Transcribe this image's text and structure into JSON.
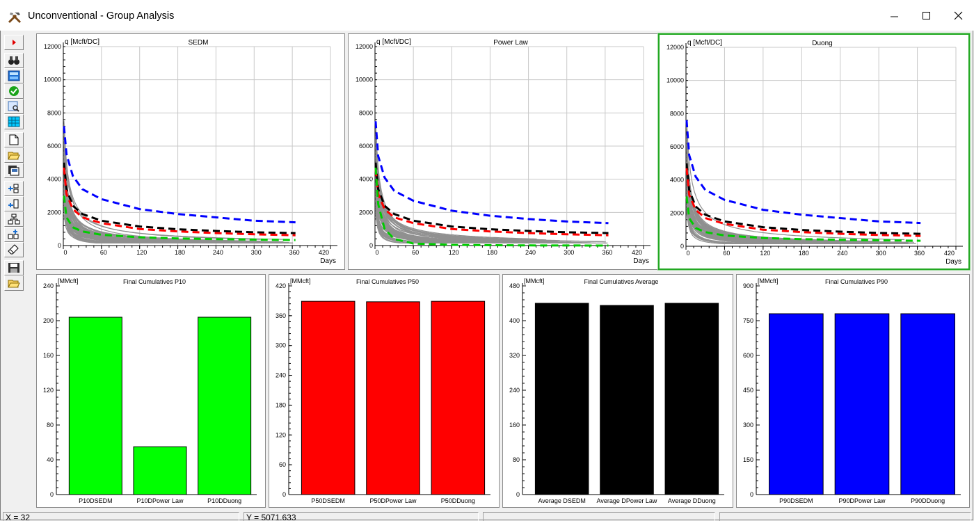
{
  "window": {
    "title": "Unconventional - Group Analysis"
  },
  "toolbar": {
    "buttons": [
      "run-icon",
      "binoculars-icon",
      "calculator-icon",
      "check-icon",
      "preview-icon",
      "grid-icon",
      "new-file-icon",
      "open-folder-icon",
      "save-copy-icon",
      "add-node-icon",
      "insert-node-icon",
      "tree-icon",
      "add-tree-icon",
      "eraser-icon",
      "save-disk-icon",
      "open-folder-icon"
    ]
  },
  "line_panels": [
    {
      "title": "SEDM",
      "y_label": "q [Mcft/DC]",
      "x_label": "Days",
      "y_ticks": [
        "0",
        "2000",
        "4000",
        "6000",
        "8000",
        "10000",
        "12000"
      ],
      "x_ticks": [
        "0",
        "60",
        "120",
        "180",
        "240",
        "300",
        "360",
        "420"
      ],
      "selected": false
    },
    {
      "title": "Power Law",
      "y_label": "q [Mcft/DC]",
      "x_label": "Days",
      "y_ticks": [
        "0",
        "2000",
        "4000",
        "6000",
        "8000",
        "10000",
        "12000"
      ],
      "x_ticks": [
        "0",
        "60",
        "120",
        "180",
        "240",
        "300",
        "360",
        "420"
      ],
      "selected": false
    },
    {
      "title": "Duong",
      "y_label": "q [Mcft/DC]",
      "x_label": "Days",
      "y_ticks": [
        "0",
        "2000",
        "4000",
        "6000",
        "8000",
        "10000",
        "12000"
      ],
      "x_ticks": [
        "0",
        "60",
        "120",
        "180",
        "240",
        "300",
        "360",
        "420"
      ],
      "selected": true
    }
  ],
  "bar_panels": [
    {
      "title": "Final Cumulatives P10",
      "y_label": "[MMcft]",
      "color": "#00ff00",
      "y_ticks": [
        "0",
        "40",
        "80",
        "120",
        "160",
        "200",
        "240"
      ],
      "categories": [
        "P10DSEDM",
        "P10DPower Law",
        "P10DDuong"
      ]
    },
    {
      "title": "Final Cumulatives P50",
      "y_label": "[MMcft]",
      "color": "#ff0000",
      "y_ticks": [
        "0",
        "60",
        "120",
        "180",
        "240",
        "300",
        "360",
        "420"
      ],
      "categories": [
        "P50DSEDM",
        "P50DPower Law",
        "P50DDuong"
      ]
    },
    {
      "title": "Final Cumulatives Average",
      "y_label": "[MMcft]",
      "color": "#000000",
      "y_ticks": [
        "0",
        "80",
        "160",
        "240",
        "320",
        "400",
        "480"
      ],
      "categories": [
        "Average DSEDM",
        "Average DPower Law",
        "Average DDuong"
      ]
    },
    {
      "title": "Final Cumulatives P90",
      "y_label": "[MMcft]",
      "color": "#0000ff",
      "y_ticks": [
        "0",
        "150",
        "300",
        "450",
        "600",
        "750",
        "900"
      ],
      "categories": [
        "P90DSEDM",
        "P90DPower Law",
        "P90DDuong"
      ]
    }
  ],
  "chart_data": [
    {
      "type": "line",
      "title": "SEDM",
      "ylabel": "q [Mcft/DC]",
      "xlabel": "Days",
      "xlim": [
        0,
        420
      ],
      "ylim": [
        0,
        12000
      ],
      "grid": true,
      "series": [
        {
          "color": "#0000ff",
          "style": "dashed",
          "x": [
            1,
            5,
            15,
            30,
            60,
            120,
            180,
            240,
            300,
            365
          ],
          "y": [
            7200,
            5500,
            4200,
            3400,
            2800,
            2200,
            1900,
            1700,
            1500,
            1400
          ]
        },
        {
          "color": "#000000",
          "style": "dashed",
          "x": [
            1,
            5,
            15,
            30,
            60,
            120,
            180,
            240,
            300,
            365
          ],
          "y": [
            5000,
            3400,
            2400,
            1900,
            1500,
            1150,
            980,
            880,
            800,
            750
          ]
        },
        {
          "color": "#ff0000",
          "style": "dashed",
          "x": [
            1,
            5,
            15,
            30,
            60,
            120,
            180,
            240,
            300,
            365
          ],
          "y": [
            4700,
            3100,
            2200,
            1700,
            1350,
            1000,
            850,
            750,
            680,
            620
          ]
        },
        {
          "color": "#00cc00",
          "style": "dashed",
          "x": [
            1,
            5,
            15,
            30,
            60,
            120,
            180,
            240,
            300,
            365
          ],
          "y": [
            3000,
            1700,
            1100,
            850,
            650,
            500,
            430,
            390,
            360,
            330
          ]
        }
      ]
    },
    {
      "type": "line",
      "title": "Power Law",
      "ylabel": "q [Mcft/DC]",
      "xlabel": "Days",
      "xlim": [
        0,
        420
      ],
      "ylim": [
        0,
        12000
      ],
      "grid": true,
      "series": [
        {
          "color": "#0000ff",
          "style": "dashed",
          "x": [
            1,
            5,
            15,
            30,
            60,
            120,
            180,
            240,
            300,
            365
          ],
          "y": [
            7500,
            5400,
            4100,
            3300,
            2700,
            2100,
            1800,
            1600,
            1450,
            1350
          ]
        },
        {
          "color": "#000000",
          "style": "dashed",
          "x": [
            1,
            5,
            15,
            30,
            60,
            120,
            180,
            240,
            300,
            365
          ],
          "y": [
            5000,
            3400,
            2400,
            1900,
            1500,
            1150,
            980,
            880,
            800,
            750
          ]
        },
        {
          "color": "#ff0000",
          "style": "dashed",
          "x": [
            1,
            5,
            15,
            30,
            60,
            120,
            180,
            240,
            300,
            365
          ],
          "y": [
            4600,
            3100,
            2200,
            1700,
            1350,
            1000,
            850,
            750,
            680,
            620
          ]
        },
        {
          "color": "#00cc00",
          "style": "dashed",
          "x": [
            1,
            5,
            15,
            30,
            60,
            120,
            180,
            240,
            300,
            365
          ],
          "y": [
            4700,
            2500,
            1000,
            400,
            120,
            40,
            20,
            10,
            5,
            0
          ]
        }
      ]
    },
    {
      "type": "line",
      "title": "Duong",
      "ylabel": "q [Mcft/DC]",
      "xlabel": "Days",
      "xlim": [
        0,
        420
      ],
      "ylim": [
        0,
        12000
      ],
      "grid": true,
      "series": [
        {
          "color": "#0000ff",
          "style": "dashed",
          "x": [
            1,
            5,
            15,
            30,
            60,
            120,
            180,
            240,
            300,
            365
          ],
          "y": [
            7600,
            5500,
            4200,
            3400,
            2800,
            2200,
            1900,
            1700,
            1500,
            1400
          ]
        },
        {
          "color": "#000000",
          "style": "dashed",
          "x": [
            1,
            5,
            15,
            30,
            60,
            120,
            180,
            240,
            300,
            365
          ],
          "y": [
            5000,
            3400,
            2400,
            1900,
            1500,
            1150,
            980,
            880,
            800,
            750
          ]
        },
        {
          "color": "#ff0000",
          "style": "dashed",
          "x": [
            1,
            5,
            15,
            30,
            60,
            120,
            180,
            240,
            300,
            365
          ],
          "y": [
            4700,
            3100,
            2200,
            1700,
            1350,
            1000,
            850,
            750,
            680,
            620
          ]
        },
        {
          "color": "#00cc00",
          "style": "dashed",
          "x": [
            1,
            5,
            15,
            30,
            60,
            120,
            180,
            240,
            300,
            365
          ],
          "y": [
            3000,
            1700,
            1100,
            850,
            650,
            500,
            430,
            390,
            360,
            330
          ]
        }
      ]
    },
    {
      "type": "bar",
      "title": "Final Cumulatives P10",
      "ylabel": "[MMcft]",
      "categories": [
        "P10DSEDM",
        "P10DPower Law",
        "P10DDuong"
      ],
      "values": [
        204,
        55,
        204
      ],
      "ylim": [
        0,
        240
      ]
    },
    {
      "type": "bar",
      "title": "Final Cumulatives P50",
      "ylabel": "[MMcft]",
      "categories": [
        "P50DSEDM",
        "P50DPower Law",
        "P50DDuong"
      ],
      "values": [
        389,
        388,
        389
      ],
      "ylim": [
        0,
        420
      ]
    },
    {
      "type": "bar",
      "title": "Final Cumulatives Average",
      "ylabel": "[MMcft]",
      "categories": [
        "Average DSEDM",
        "Average DPower Law",
        "Average DDuong"
      ],
      "values": [
        440,
        435,
        440
      ],
      "ylim": [
        0,
        480
      ]
    },
    {
      "type": "bar",
      "title": "Final Cumulatives P90",
      "ylabel": "[MMcft]",
      "categories": [
        "P90DSEDM",
        "P90DPower Law",
        "P90DDuong"
      ],
      "values": [
        780,
        780,
        780
      ],
      "ylim": [
        0,
        900
      ]
    }
  ],
  "status": {
    "x_readout": "X = 32",
    "y_readout": "Y = 5071.633",
    "field3": "",
    "field4": ""
  }
}
